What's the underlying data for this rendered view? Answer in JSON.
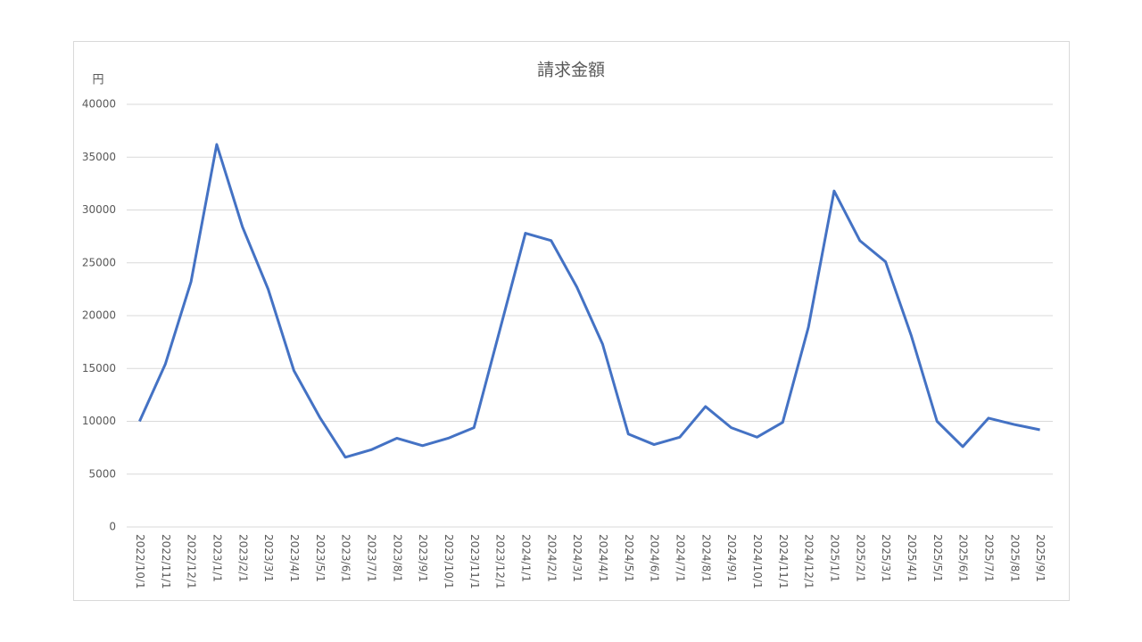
{
  "chart_data": {
    "type": "line",
    "title": "請求金額",
    "y_label": "円",
    "categories": [
      "2022/10/1",
      "2022/11/1",
      "2022/12/1",
      "2023/1/1",
      "2023/2/1",
      "2023/3/1",
      "2023/4/1",
      "2023/5/1",
      "2023/6/1",
      "2023/7/1",
      "2023/8/1",
      "2023/9/1",
      "2023/10/1",
      "2023/11/1",
      "2023/12/1",
      "2024/1/1",
      "2024/2/1",
      "2024/3/1",
      "2024/4/1",
      "2024/5/1",
      "2024/6/1",
      "2024/7/1",
      "2024/8/1",
      "2024/9/1",
      "2024/10/1",
      "2024/11/1",
      "2024/12/1",
      "2025/1/1",
      "2025/2/1",
      "2025/3/1",
      "2025/4/1",
      "2025/5/1",
      "2025/6/1",
      "2025/7/1",
      "2025/8/1",
      "2025/9/1"
    ],
    "values": [
      10000,
      15400,
      23200,
      36200,
      28400,
      22500,
      14800,
      10400,
      6600,
      7300,
      8400,
      7700,
      8400,
      9400,
      18600,
      27800,
      27100,
      22700,
      17300,
      8800,
      7800,
      8500,
      11400,
      9400,
      8500,
      9900,
      18900,
      31800,
      27100,
      25100,
      18100,
      10000,
      7600,
      10300,
      9700,
      9200
    ],
    "color": "#4472c4",
    "ylim": [
      0,
      40000
    ],
    "yticks": [
      0,
      5000,
      10000,
      15000,
      20000,
      25000,
      30000,
      35000,
      40000
    ],
    "grid": true
  }
}
